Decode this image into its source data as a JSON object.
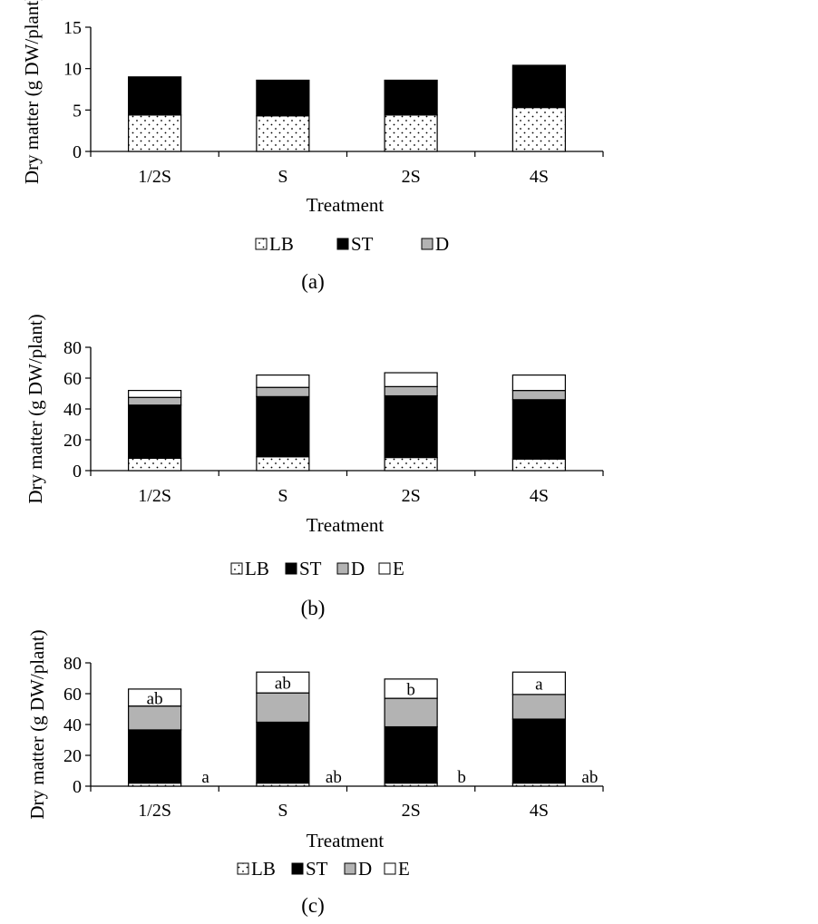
{
  "chart_data": [
    {
      "type": "bar",
      "stacked": true,
      "panel_label": "(a)",
      "categories": [
        "1/2S",
        "S",
        "2S",
        "4S"
      ],
      "xlabel": "Treatment",
      "ylabel": "Dry matter (g DW/plant)",
      "ylim": [
        0,
        15
      ],
      "yticks": [
        0,
        5,
        10,
        15
      ],
      "grid": false,
      "legend_position": "bottom",
      "legend": [
        "LB",
        "ST",
        "D"
      ],
      "series": [
        {
          "name": "LB",
          "values": [
            4.4,
            4.3,
            4.4,
            5.3
          ]
        },
        {
          "name": "ST",
          "values": [
            4.6,
            4.3,
            4.2,
            5.1
          ]
        },
        {
          "name": "D",
          "values": [
            0,
            0,
            0,
            0
          ]
        }
      ],
      "annotations_top": [],
      "annotations_side": []
    },
    {
      "type": "bar",
      "stacked": true,
      "panel_label": "(b)",
      "categories": [
        "1/2S",
        "S",
        "2S",
        "4S"
      ],
      "xlabel": "Treatment",
      "ylabel": "Dry matter (g DW/plant)",
      "ylim": [
        0,
        80
      ],
      "yticks": [
        0,
        20,
        40,
        60,
        80
      ],
      "grid": false,
      "legend_position": "bottom",
      "legend": [
        "LB",
        "ST",
        "D",
        "E"
      ],
      "series": [
        {
          "name": "LB",
          "values": [
            8,
            9,
            8.5,
            7.5
          ]
        },
        {
          "name": "ST",
          "values": [
            34.5,
            39,
            40,
            38.5
          ]
        },
        {
          "name": "D",
          "values": [
            5,
            6,
            6,
            6
          ]
        },
        {
          "name": "E",
          "values": [
            4.5,
            8,
            9,
            10
          ]
        }
      ],
      "annotations_top": [],
      "annotations_side": []
    },
    {
      "type": "bar",
      "stacked": true,
      "panel_label": "(c)",
      "categories": [
        "1/2S",
        "S",
        "2S",
        "4S"
      ],
      "xlabel": "Treatment",
      "ylabel": "Dry matter (g DW/plant)",
      "ylim": [
        0,
        80
      ],
      "yticks": [
        0,
        20,
        40,
        60,
        80
      ],
      "grid": false,
      "legend_position": "bottom",
      "legend": [
        "LB",
        "ST",
        "D",
        "E"
      ],
      "series": [
        {
          "name": "LB",
          "values": [
            2,
            2,
            2,
            2
          ]
        },
        {
          "name": "ST",
          "values": [
            34.5,
            39.5,
            36.5,
            41.5
          ]
        },
        {
          "name": "D",
          "values": [
            15.5,
            19,
            18.5,
            16
          ]
        },
        {
          "name": "E",
          "values": [
            11,
            13.5,
            12.5,
            14.5
          ]
        }
      ],
      "annotations_top": [
        "ab",
        "ab",
        "b",
        "a"
      ],
      "annotations_side": [
        "a",
        "ab",
        "b",
        "ab"
      ]
    }
  ]
}
